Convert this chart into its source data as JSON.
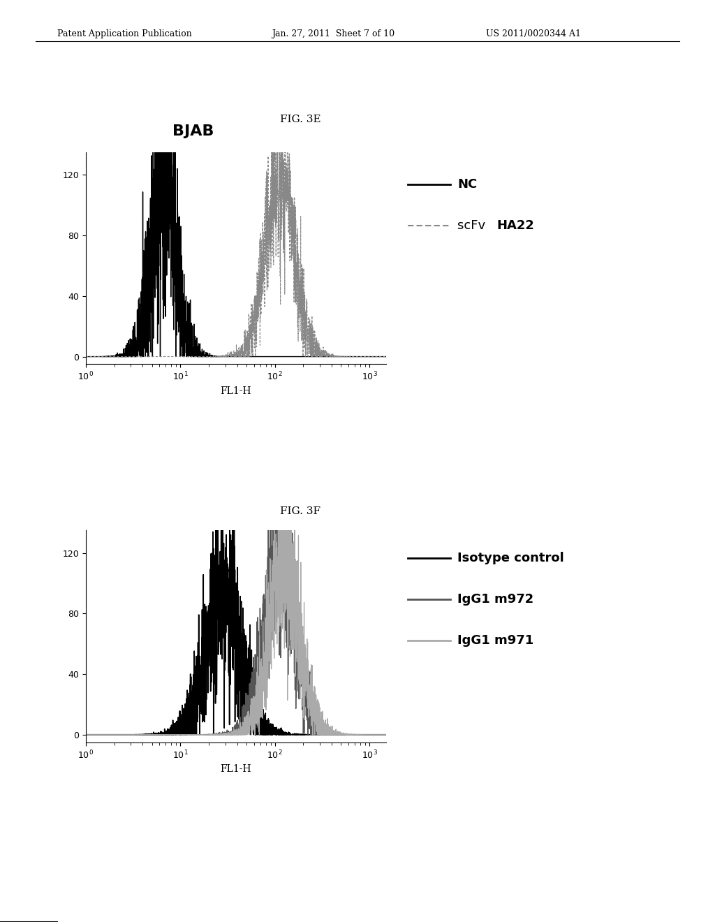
{
  "header_left": "Patent Application Publication",
  "header_center": "Jan. 27, 2011  Sheet 7 of 10",
  "header_right": "US 2011/0020344 A1",
  "fig3e_label": "FIG. 3E",
  "fig3e_title": "BJAB",
  "fig3f_label": "FIG. 3F",
  "fig3e_xlabel": "FL1-H",
  "fig3f_xlabel": "FL1-H",
  "fig3e_ylabel": "",
  "fig3f_ylabel": "",
  "fig3e_yticks": [
    0,
    40,
    80,
    120
  ],
  "fig3f_yticks": [
    0,
    40,
    80,
    120
  ],
  "fig3e_legend": [
    "NC",
    "scFv HA22"
  ],
  "fig3e_legend_styles": [
    "solid_black",
    "dotted_gray"
  ],
  "fig3f_legend": [
    "Isotype control",
    "IgG1 m972",
    "IgG1 m971"
  ],
  "fig3f_legend_styles": [
    "solid_black",
    "solid_dark",
    "solid_light"
  ],
  "background_color": "#ffffff",
  "plot_bg": "#ffffff",
  "nc_color": "#000000",
  "scfv_color": "#888888",
  "isotype_color": "#000000",
  "igg1m972_color": "#555555",
  "igg1m971_color": "#aaaaaa"
}
